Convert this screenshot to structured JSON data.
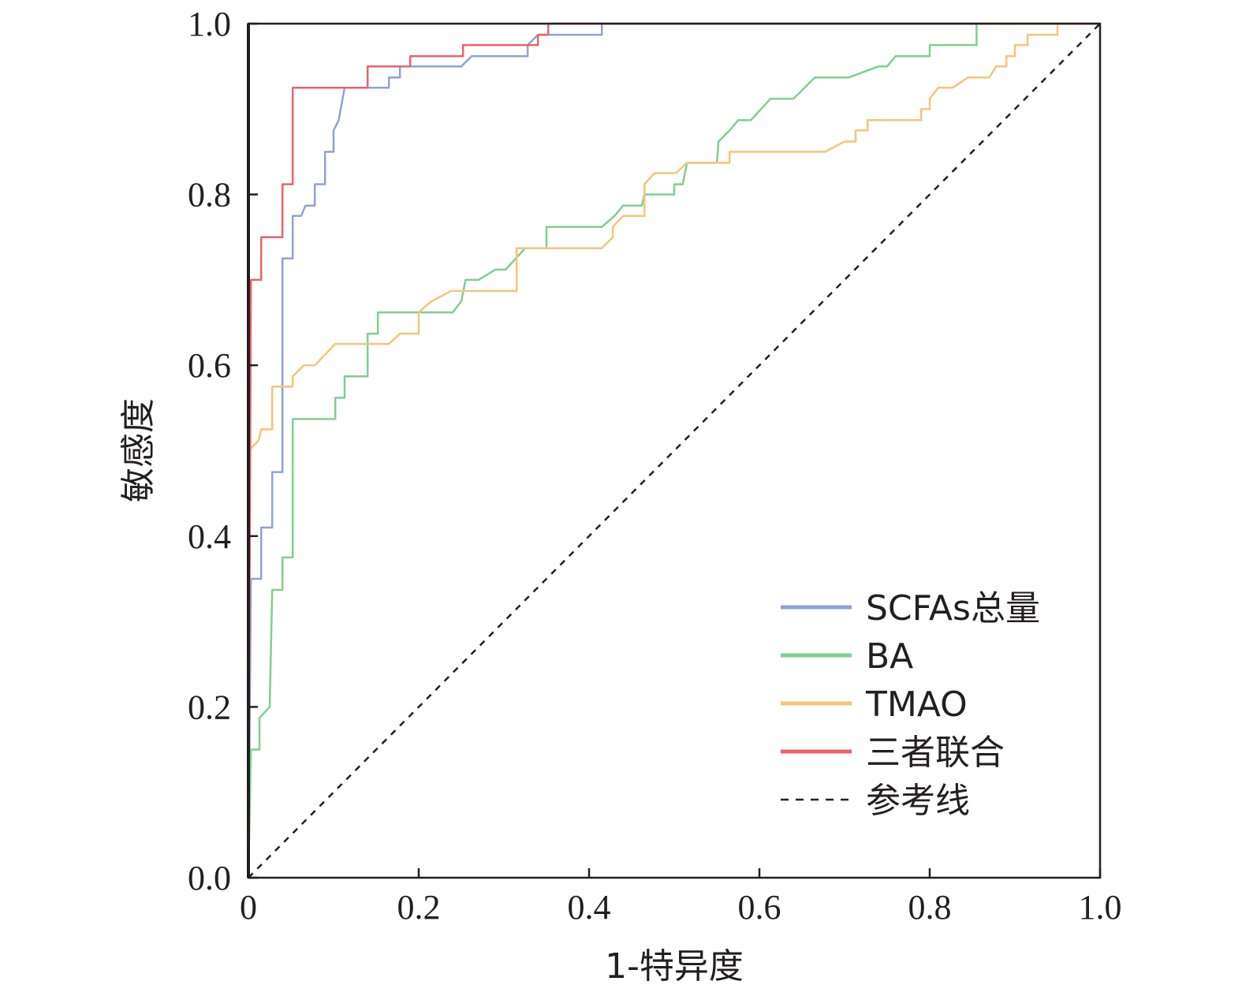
{
  "chart_data": {
    "type": "line",
    "title": "",
    "xlabel": "1-特异度",
    "ylabel": "敏感度",
    "xlim": [
      0,
      1
    ],
    "ylim": [
      0,
      1
    ],
    "xticks": [
      "0",
      "0.2",
      "0.4",
      "0.6",
      "0.8",
      "1.0"
    ],
    "yticks": [
      "0.0",
      "0.2",
      "0.4",
      "0.6",
      "0.8",
      "1.0"
    ],
    "grid": false,
    "legend_position": "bottom-right",
    "series": [
      {
        "name": "SCFAs总量",
        "color": "#8ea3d2",
        "points": [
          [
            0,
            0
          ],
          [
            0.003,
            0.35
          ],
          [
            0.015,
            0.35
          ],
          [
            0.015,
            0.41
          ],
          [
            0.028,
            0.41
          ],
          [
            0.028,
            0.475
          ],
          [
            0.04,
            0.475
          ],
          [
            0.04,
            0.725
          ],
          [
            0.052,
            0.725
          ],
          [
            0.052,
            0.775
          ],
          [
            0.062,
            0.775
          ],
          [
            0.067,
            0.787
          ],
          [
            0.078,
            0.787
          ],
          [
            0.078,
            0.812
          ],
          [
            0.09,
            0.812
          ],
          [
            0.09,
            0.85
          ],
          [
            0.1,
            0.85
          ],
          [
            0.1,
            0.875
          ],
          [
            0.106,
            0.887
          ],
          [
            0.113,
            0.925
          ],
          [
            0.165,
            0.925
          ],
          [
            0.165,
            0.937
          ],
          [
            0.178,
            0.937
          ],
          [
            0.178,
            0.95
          ],
          [
            0.25,
            0.95
          ],
          [
            0.262,
            0.962
          ],
          [
            0.328,
            0.962
          ],
          [
            0.328,
            0.975
          ],
          [
            0.34,
            0.987
          ],
          [
            0.415,
            0.987
          ],
          [
            0.415,
            1.0
          ],
          [
            1.0,
            1.0
          ]
        ]
      },
      {
        "name": "BA",
        "color": "#7fcf8f",
        "points": [
          [
            0,
            0
          ],
          [
            0.003,
            0.15
          ],
          [
            0.013,
            0.15
          ],
          [
            0.013,
            0.187
          ],
          [
            0.025,
            0.2
          ],
          [
            0.028,
            0.337
          ],
          [
            0.04,
            0.337
          ],
          [
            0.04,
            0.375
          ],
          [
            0.052,
            0.375
          ],
          [
            0.052,
            0.537
          ],
          [
            0.102,
            0.537
          ],
          [
            0.102,
            0.562
          ],
          [
            0.113,
            0.562
          ],
          [
            0.113,
            0.587
          ],
          [
            0.14,
            0.587
          ],
          [
            0.14,
            0.637
          ],
          [
            0.152,
            0.637
          ],
          [
            0.152,
            0.662
          ],
          [
            0.24,
            0.662
          ],
          [
            0.25,
            0.675
          ],
          [
            0.255,
            0.7
          ],
          [
            0.27,
            0.7
          ],
          [
            0.29,
            0.712
          ],
          [
            0.302,
            0.712
          ],
          [
            0.325,
            0.737
          ],
          [
            0.35,
            0.737
          ],
          [
            0.35,
            0.762
          ],
          [
            0.415,
            0.762
          ],
          [
            0.43,
            0.775
          ],
          [
            0.44,
            0.787
          ],
          [
            0.462,
            0.787
          ],
          [
            0.465,
            0.8
          ],
          [
            0.5,
            0.8
          ],
          [
            0.5,
            0.812
          ],
          [
            0.51,
            0.812
          ],
          [
            0.515,
            0.837
          ],
          [
            0.55,
            0.837
          ],
          [
            0.552,
            0.862
          ],
          [
            0.565,
            0.875
          ],
          [
            0.575,
            0.887
          ],
          [
            0.59,
            0.887
          ],
          [
            0.613,
            0.912
          ],
          [
            0.64,
            0.912
          ],
          [
            0.665,
            0.937
          ],
          [
            0.705,
            0.937
          ],
          [
            0.74,
            0.95
          ],
          [
            0.75,
            0.95
          ],
          [
            0.76,
            0.962
          ],
          [
            0.8,
            0.962
          ],
          [
            0.8,
            0.975
          ],
          [
            0.855,
            0.975
          ],
          [
            0.855,
            1.0
          ],
          [
            1.0,
            1.0
          ]
        ]
      },
      {
        "name": "TMAO",
        "color": "#f5c47b",
        "points": [
          [
            0,
            0.5
          ],
          [
            0.012,
            0.512
          ],
          [
            0.015,
            0.525
          ],
          [
            0.028,
            0.525
          ],
          [
            0.028,
            0.575
          ],
          [
            0.052,
            0.575
          ],
          [
            0.052,
            0.587
          ],
          [
            0.065,
            0.6
          ],
          [
            0.078,
            0.6
          ],
          [
            0.102,
            0.625
          ],
          [
            0.165,
            0.625
          ],
          [
            0.178,
            0.637
          ],
          [
            0.2,
            0.637
          ],
          [
            0.2,
            0.662
          ],
          [
            0.215,
            0.675
          ],
          [
            0.238,
            0.687
          ],
          [
            0.315,
            0.687
          ],
          [
            0.315,
            0.737
          ],
          [
            0.415,
            0.737
          ],
          [
            0.428,
            0.75
          ],
          [
            0.428,
            0.762
          ],
          [
            0.44,
            0.775
          ],
          [
            0.465,
            0.775
          ],
          [
            0.465,
            0.812
          ],
          [
            0.477,
            0.825
          ],
          [
            0.502,
            0.825
          ],
          [
            0.515,
            0.837
          ],
          [
            0.565,
            0.837
          ],
          [
            0.565,
            0.85
          ],
          [
            0.677,
            0.85
          ],
          [
            0.7,
            0.862
          ],
          [
            0.713,
            0.862
          ],
          [
            0.713,
            0.875
          ],
          [
            0.727,
            0.875
          ],
          [
            0.727,
            0.887
          ],
          [
            0.79,
            0.887
          ],
          [
            0.79,
            0.9
          ],
          [
            0.8,
            0.9
          ],
          [
            0.8,
            0.912
          ],
          [
            0.81,
            0.925
          ],
          [
            0.827,
            0.925
          ],
          [
            0.845,
            0.937
          ],
          [
            0.87,
            0.937
          ],
          [
            0.878,
            0.95
          ],
          [
            0.89,
            0.95
          ],
          [
            0.89,
            0.962
          ],
          [
            0.9,
            0.962
          ],
          [
            0.9,
            0.975
          ],
          [
            0.915,
            0.975
          ],
          [
            0.915,
            0.987
          ],
          [
            0.95,
            0.987
          ],
          [
            0.95,
            1.0
          ],
          [
            1.0,
            1.0
          ]
        ]
      },
      {
        "name": "三者联合",
        "color": "#e8646b",
        "points": [
          [
            0,
            0
          ],
          [
            0.003,
            0.7
          ],
          [
            0.015,
            0.7
          ],
          [
            0.015,
            0.75
          ],
          [
            0.04,
            0.75
          ],
          [
            0.04,
            0.812
          ],
          [
            0.052,
            0.812
          ],
          [
            0.052,
            0.925
          ],
          [
            0.14,
            0.925
          ],
          [
            0.14,
            0.95
          ],
          [
            0.19,
            0.95
          ],
          [
            0.19,
            0.962
          ],
          [
            0.252,
            0.962
          ],
          [
            0.252,
            0.975
          ],
          [
            0.34,
            0.975
          ],
          [
            0.34,
            0.987
          ],
          [
            0.352,
            0.987
          ],
          [
            0.352,
            1.0
          ],
          [
            1.0,
            1.0
          ]
        ]
      },
      {
        "name": "参考线",
        "color": "#231f20",
        "dashed": true,
        "points": [
          [
            0,
            0
          ],
          [
            1,
            1
          ]
        ]
      }
    ]
  }
}
